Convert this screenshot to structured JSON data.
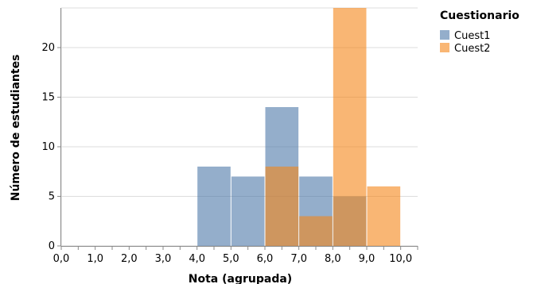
{
  "chart_data": {
    "type": "bar",
    "title": "",
    "xlabel": "Nota (agrupada)",
    "ylabel": "Número de estudiantes",
    "x_ticks": [
      "0,0",
      "1,0",
      "2,0",
      "3,0",
      "4,0",
      "5,0",
      "6,0",
      "7,0",
      "8,0",
      "9,0",
      "10,0"
    ],
    "x_domain": [
      0,
      10.5
    ],
    "bins": [
      [
        4,
        5
      ],
      [
        5,
        6
      ],
      [
        6,
        7
      ],
      [
        7,
        8
      ],
      [
        8,
        9
      ],
      [
        9,
        10
      ]
    ],
    "y_ticks": [
      0,
      5,
      10,
      15,
      20
    ],
    "ylim": [
      0,
      24
    ],
    "grid": true,
    "legend": {
      "title": "Cuestionario",
      "position": "top-right"
    },
    "series": [
      {
        "name": "Cuest1",
        "color": "#4c78a8",
        "values": [
          8,
          7,
          14,
          7,
          5,
          0
        ]
      },
      {
        "name": "Cuest2",
        "color": "#f58518",
        "values": [
          0,
          0,
          8,
          3,
          24,
          6
        ]
      }
    ]
  }
}
